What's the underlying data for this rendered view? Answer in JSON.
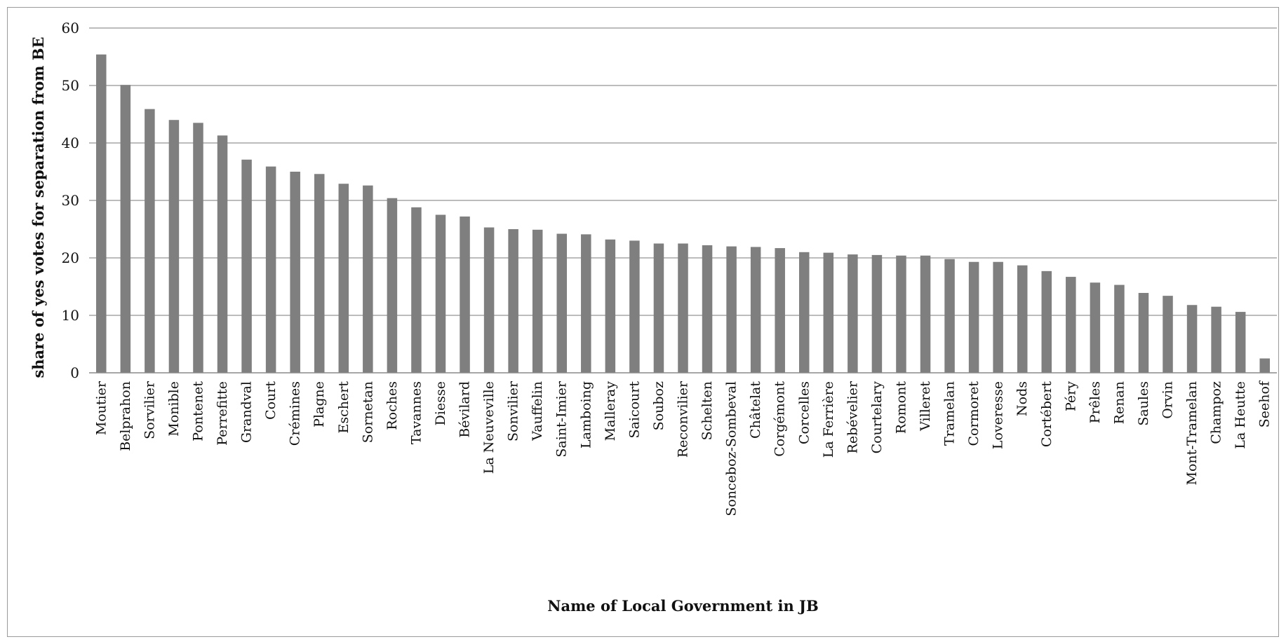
{
  "chart_data": {
    "type": "bar",
    "xlabel": "Name of Local Government in JB",
    "ylabel": "share of yes votes for separation from BE",
    "ylim": [
      0,
      60
    ],
    "yticks": [
      0,
      10,
      20,
      30,
      40,
      50,
      60
    ],
    "grid": true,
    "legend": "none",
    "bar_color": "#7f7f7f",
    "categories": [
      "Moutier",
      "Belprahon",
      "Sorvilier",
      "Monible",
      "Pontenet",
      "Perrefitte",
      "Grandval",
      "Court",
      "Crémines",
      "Plagne",
      "Eschert",
      "Sornetan",
      "Roches",
      "Tavannes",
      "Diesse",
      "Bévilard",
      "La Neuveville",
      "Sonvilier",
      "Vauffelin",
      "Saint-Imier",
      "Lamboing",
      "Malleray",
      "Saicourt",
      "Souboz",
      "Reconvilier",
      "Schelten",
      "Sonceboz-Sombeval",
      "Châtelat",
      "Corgémont",
      "Corcelles",
      "La Ferrière",
      "Rebévelier",
      "Courtelary",
      "Romont",
      "Villeret",
      "Tramelan",
      "Cormoret",
      "Loveresse",
      "Nods",
      "Cortébert",
      "Péry",
      "Prêles",
      "Renan",
      "Saules",
      "Orvin",
      "Mont-Tramelan",
      "Champoz",
      "La Heutte",
      "Seehof"
    ],
    "values": [
      55.4,
      50.1,
      45.9,
      44.0,
      43.5,
      41.3,
      37.1,
      35.9,
      35.0,
      34.6,
      32.9,
      32.6,
      30.4,
      28.8,
      27.5,
      27.2,
      25.3,
      25.0,
      24.9,
      24.2,
      24.1,
      23.2,
      23.0,
      22.5,
      22.5,
      22.2,
      22.0,
      21.9,
      21.7,
      21.0,
      20.9,
      20.6,
      20.5,
      20.4,
      20.4,
      19.8,
      19.3,
      19.3,
      18.7,
      17.7,
      16.7,
      15.7,
      15.3,
      13.9,
      13.4,
      11.8,
      11.5,
      10.6,
      2.5
    ]
  }
}
